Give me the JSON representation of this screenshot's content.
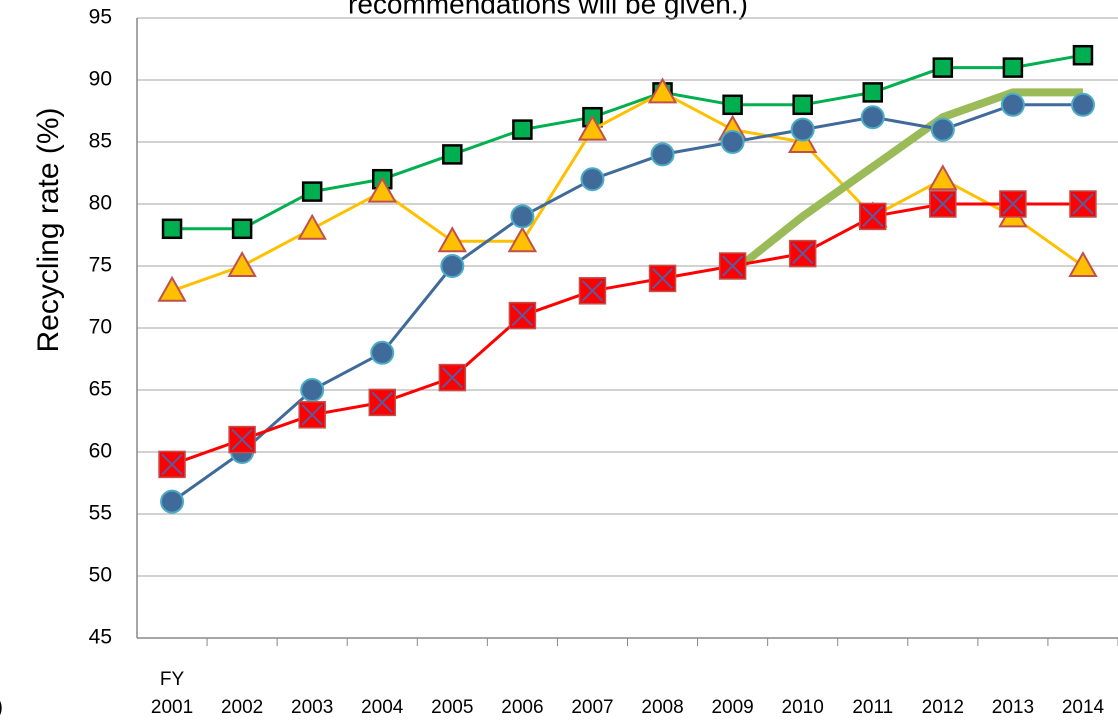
{
  "chart_data": {
    "type": "line",
    "title": "recommendations will be given.)",
    "annotation": ")",
    "ylabel": "Recycling rate (%)",
    "x_axis_note": "FY",
    "categories": [
      "2001",
      "2002",
      "2003",
      "2004",
      "2005",
      "2006",
      "2007",
      "2008",
      "2009",
      "2010",
      "2011",
      "2012",
      "2013",
      "2014"
    ],
    "ylim": [
      45,
      95
    ],
    "yticks": [
      45,
      50,
      55,
      60,
      65,
      70,
      75,
      80,
      85,
      90,
      95
    ],
    "grid": true,
    "series": [
      {
        "color": "#00b050",
        "marker": "square",
        "marker_fill": "#00b050",
        "marker_edge": "#000000",
        "values": [
          78,
          78,
          81,
          82,
          84,
          86,
          87,
          89,
          88,
          88,
          89,
          91,
          91,
          92
        ]
      },
      {
        "color": "#ffc000",
        "marker": "triangle",
        "marker_fill": "#ffc000",
        "marker_edge": "#c0504d",
        "values": [
          73,
          75,
          78,
          81,
          77,
          77,
          86,
          89,
          86,
          85,
          79,
          82,
          79,
          75
        ]
      },
      {
        "color": "#9bbb59",
        "marker": "none",
        "line_width": 8,
        "values": [
          null,
          null,
          null,
          null,
          null,
          null,
          null,
          null,
          74.5,
          79,
          83,
          87,
          89,
          89
        ]
      },
      {
        "color": "#3f6a99",
        "marker": "circle",
        "marker_fill": "#3f6a99",
        "marker_edge": "#4bacc6",
        "values": [
          56,
          60,
          65,
          68,
          75,
          79,
          82,
          84,
          85,
          86,
          87,
          86,
          88,
          88
        ]
      },
      {
        "color": "#ff0000",
        "marker": "square-x",
        "marker_fill": "#ff0000",
        "marker_edge": "#c0504d",
        "values": [
          59,
          61,
          63,
          64,
          66,
          71,
          73,
          74,
          75,
          76,
          79,
          80,
          80,
          80
        ]
      }
    ]
  }
}
